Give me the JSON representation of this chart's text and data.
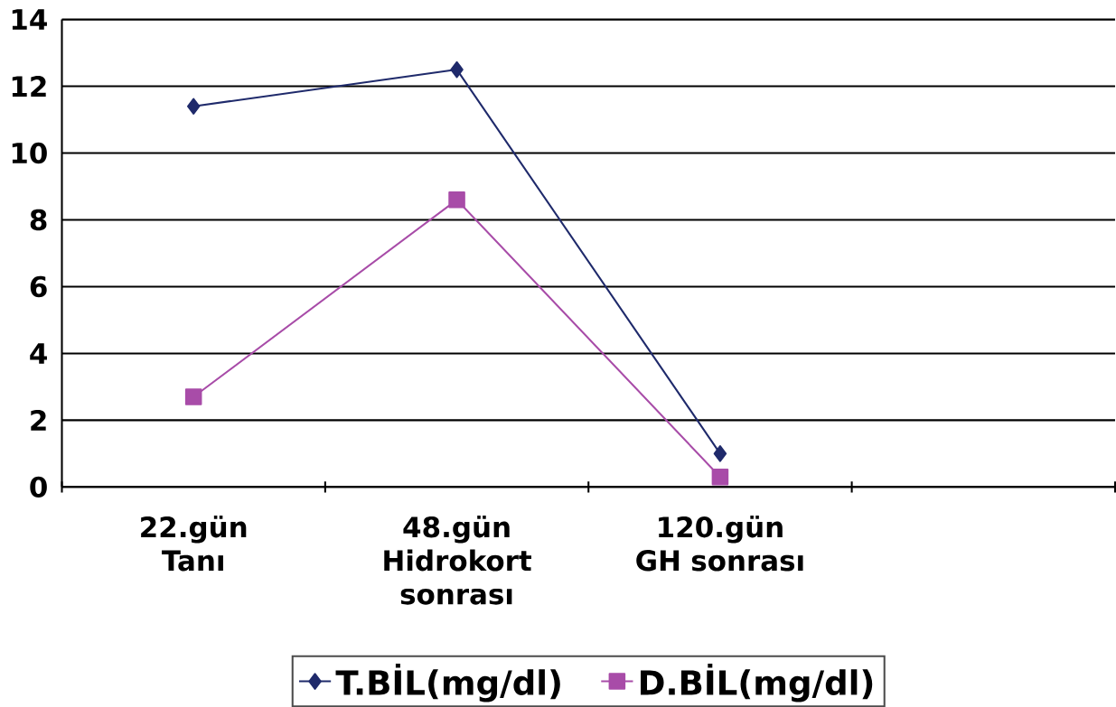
{
  "chart_data": {
    "type": "line",
    "categories": [
      "22.gün Tanı",
      "48.gün Hidrokort sonrası",
      "120.gün GH sonrası",
      null
    ],
    "series": [
      {
        "name": "T.BİL(mg/dl)",
        "color": "#1f2a6b",
        "marker": "diamond",
        "values": [
          11.4,
          12.5,
          1.0,
          null
        ]
      },
      {
        "name": "D.BİL(mg/dl)",
        "color": "#a84ca8",
        "marker": "square",
        "values": [
          2.7,
          8.6,
          0.3,
          null
        ]
      }
    ],
    "ylim": [
      0,
      14
    ],
    "yticks": [
      0,
      2,
      4,
      6,
      8,
      10,
      12,
      14
    ],
    "grid": "y",
    "legend": "bottom"
  }
}
